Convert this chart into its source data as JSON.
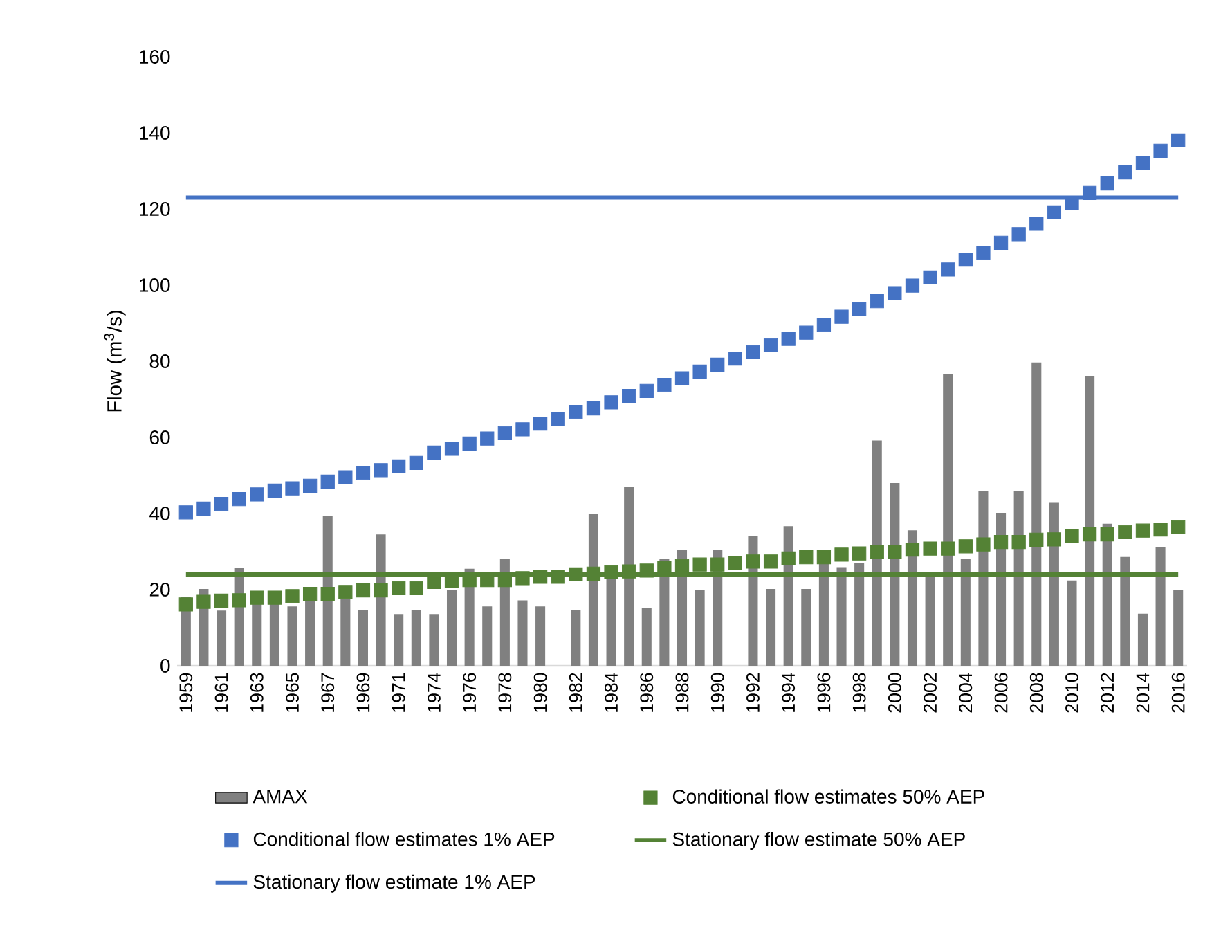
{
  "chart_data": {
    "type": "bar",
    "ylabel": "Flow (m$^{3}$/s)",
    "categories": [
      "1959",
      null,
      "1961",
      null,
      "1963",
      null,
      "1965",
      null,
      "1967",
      null,
      "1969",
      null,
      "1971",
      null,
      "1974",
      null,
      "1976",
      null,
      "1978",
      null,
      "1980",
      null,
      "1982",
      null,
      "1984",
      null,
      "1986",
      null,
      "1988",
      null,
      "1990",
      null,
      "1992",
      null,
      "1994",
      null,
      "1996",
      null,
      "1998",
      null,
      "2000",
      null,
      "2002",
      null,
      "2004",
      null,
      "2006",
      null,
      "2008",
      null,
      "2010",
      null,
      "2012",
      null,
      "2014",
      null,
      "2016"
    ],
    "series": [
      {
        "name": "AMAX",
        "color": "#808080",
        "values": [
          18,
          20.2,
          14.5,
          25.8,
          17,
          17,
          15.6,
          17,
          39.3,
          17.5,
          14.7,
          34.5,
          13.6,
          14.7,
          13.6,
          19.8,
          25.5,
          15.6,
          28,
          17.2,
          15.6,
          null,
          14.7,
          39.9,
          23,
          46.9,
          15.1,
          28,
          30.5,
          19.8,
          30.5,
          null,
          34,
          20.2,
          36.7,
          20.2,
          27,
          25.9,
          27,
          59.2,
          48,
          35.6,
          24,
          76.7,
          28,
          45.9,
          40.2,
          45.9,
          79.7,
          42.8,
          22.4,
          76.2,
          37.3,
          28.6,
          13.7,
          31.2,
          19.8
        ]
      },
      {
        "name": "Conditional flow estimates 50% AEP",
        "type": "scatter",
        "marker": "square",
        "color": "#548235",
        "values": [
          16.1,
          16.8,
          17.1,
          17.2,
          17.9,
          17.9,
          18.3,
          18.9,
          18.9,
          19.4,
          19.8,
          19.8,
          20.4,
          20.4,
          22,
          22.2,
          22.5,
          22.5,
          22.5,
          23,
          23.4,
          23.4,
          24,
          24.2,
          24.6,
          24.8,
          25,
          25.8,
          26.2,
          26.6,
          26.6,
          27,
          27.4,
          27.4,
          28.2,
          28.5,
          28.5,
          29.2,
          29.5,
          29.9,
          29.9,
          30.5,
          30.8,
          30.8,
          31.4,
          31.9,
          32.5,
          32.5,
          33.1,
          33.2,
          34.1,
          34.5,
          34.5,
          35.1,
          35.5,
          35.8,
          36.4
        ]
      },
      {
        "name": "Conditional flow estimates 1% AEP",
        "type": "scatter",
        "marker": "square",
        "color": "#4472c4",
        "values": [
          40.3,
          41.3,
          42.5,
          43.8,
          45,
          46,
          46.6,
          47.3,
          48.4,
          49.5,
          50.7,
          51.4,
          52.4,
          53.3,
          56,
          57,
          58.4,
          59.7,
          61.1,
          62.1,
          63.6,
          64.9,
          66.7,
          67.6,
          69.2,
          70.9,
          72.2,
          73.8,
          75.5,
          77.3,
          79.1,
          80.7,
          82.4,
          84.2,
          85.9,
          87.5,
          89.6,
          91.7,
          93.7,
          95.8,
          97.9,
          99.9,
          102,
          104.1,
          106.7,
          108.5,
          111.1,
          113.4,
          116.1,
          119.1,
          121.5,
          124.2,
          126.7,
          129.6,
          132.1,
          135.3,
          138
        ]
      },
      {
        "name": "Stationary flow estimate 50% AEP",
        "type": "line",
        "color": "#548235",
        "values": [
          24,
          24,
          24,
          24,
          24,
          24,
          24,
          24,
          24,
          24,
          24,
          24,
          24,
          24,
          24,
          24,
          24,
          24,
          24,
          24,
          24,
          24,
          24,
          24,
          24,
          24,
          24,
          24,
          24,
          24,
          24,
          24,
          24,
          24,
          24,
          24,
          24,
          24,
          24,
          24,
          24,
          24,
          24,
          24,
          24,
          24,
          24,
          24,
          24,
          24,
          24,
          24,
          24,
          24,
          24,
          24,
          24
        ]
      },
      {
        "name": "Stationary flow estimate 1% AEP",
        "type": "line",
        "color": "#4472c4",
        "values": [
          123,
          123,
          123,
          123,
          123,
          123,
          123,
          123,
          123,
          123,
          123,
          123,
          123,
          123,
          123,
          123,
          123,
          123,
          123,
          123,
          123,
          123,
          123,
          123,
          123,
          123,
          123,
          123,
          123,
          123,
          123,
          123,
          123,
          123,
          123,
          123,
          123,
          123,
          123,
          123,
          123,
          123,
          123,
          123,
          123,
          123,
          123,
          123,
          123,
          123,
          123,
          123,
          123,
          123,
          123,
          123,
          123
        ]
      }
    ],
    "ylim": [
      0,
      160
    ],
    "yticks": [
      0,
      20,
      40,
      60,
      80,
      100,
      120,
      140,
      160
    ],
    "legend": "bottom",
    "grid": false
  }
}
